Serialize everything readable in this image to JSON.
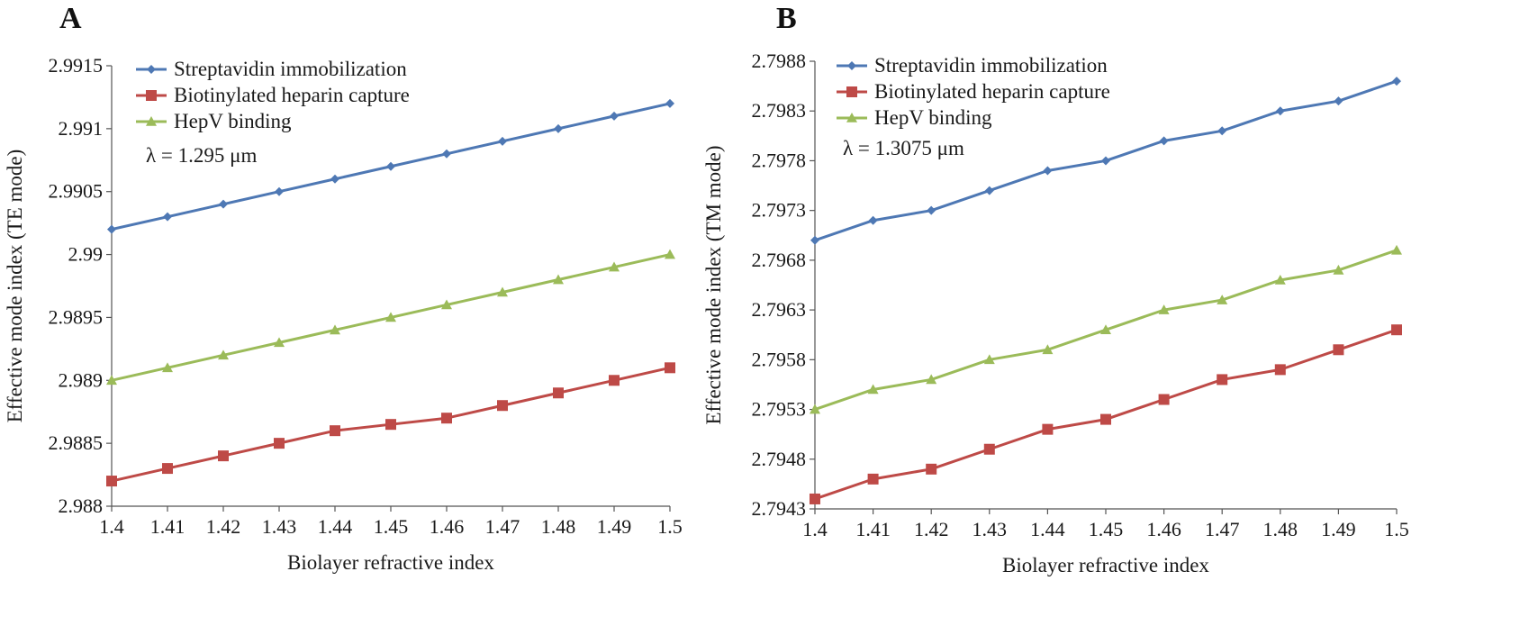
{
  "panels": {
    "a": {
      "label": "A"
    },
    "b": {
      "label": "B"
    }
  },
  "chart_data": [
    {
      "type": "line",
      "panel": "A",
      "title": "",
      "xlabel": "Biolayer refractive index",
      "ylabel": "Effective mode index (TE mode)",
      "annotation": "λ = 1.295 μm",
      "x": [
        1.4,
        1.41,
        1.42,
        1.43,
        1.44,
        1.45,
        1.46,
        1.47,
        1.48,
        1.49,
        1.5
      ],
      "xticks": [
        "1.4",
        "1.41",
        "1.42",
        "1.43",
        "1.44",
        "1.45",
        "1.46",
        "1.47",
        "1.48",
        "1.49",
        "1.5"
      ],
      "xlim": [
        1.4,
        1.5
      ],
      "ylim": [
        2.988,
        2.9915
      ],
      "yticks": [
        "2.988",
        "2.9885",
        "2.989",
        "2.9895",
        "2.99",
        "2.9905",
        "2.991",
        "2.9915"
      ],
      "legend_position": "top-left",
      "grid": false,
      "series": [
        {
          "name": "Streptavidin immobilization",
          "color": "#4e78b4",
          "marker": "diamond",
          "values": [
            2.9902,
            2.9903,
            2.9904,
            2.9905,
            2.9906,
            2.9907,
            2.9908,
            2.9909,
            2.991,
            2.9911,
            2.9912
          ]
        },
        {
          "name": "Biotinylated heparin capture",
          "color": "#be4a47",
          "marker": "square",
          "values": [
            2.9882,
            2.9883,
            2.9884,
            2.9885,
            2.9886,
            2.98865,
            2.9887,
            2.9888,
            2.9889,
            2.989,
            2.9891
          ]
        },
        {
          "name": "HepV binding",
          "color": "#9bbb59",
          "marker": "triangle",
          "values": [
            2.989,
            2.9891,
            2.9892,
            2.9893,
            2.9894,
            2.9895,
            2.9896,
            2.9897,
            2.9898,
            2.9899,
            2.99
          ]
        }
      ]
    },
    {
      "type": "line",
      "panel": "B",
      "title": "",
      "xlabel": "Biolayer refractive index",
      "ylabel": "Effective mode index (TM mode)",
      "annotation": "λ = 1.3075 μm",
      "x": [
        1.4,
        1.41,
        1.42,
        1.43,
        1.44,
        1.45,
        1.46,
        1.47,
        1.48,
        1.49,
        1.5
      ],
      "xticks": [
        "1.4",
        "1.41",
        "1.42",
        "1.43",
        "1.44",
        "1.45",
        "1.46",
        "1.47",
        "1.48",
        "1.49",
        "1.5"
      ],
      "xlim": [
        1.4,
        1.5
      ],
      "ylim": [
        2.7943,
        2.7988
      ],
      "yticks": [
        "2.7943",
        "2.7948",
        "2.7953",
        "2.7958",
        "2.7963",
        "2.7968",
        "2.7973",
        "2.7978",
        "2.7983",
        "2.7988"
      ],
      "legend_position": "top-left",
      "grid": false,
      "series": [
        {
          "name": "Streptavidin immobilization",
          "color": "#4e78b4",
          "marker": "diamond",
          "values": [
            2.797,
            2.7972,
            2.7973,
            2.7975,
            2.7977,
            2.7978,
            2.798,
            2.7981,
            2.7983,
            2.7984,
            2.7986
          ]
        },
        {
          "name": "Biotinylated heparin capture",
          "color": "#be4a47",
          "marker": "square",
          "values": [
            2.7944,
            2.7946,
            2.7947,
            2.7949,
            2.7951,
            2.7952,
            2.7954,
            2.7956,
            2.7957,
            2.7959,
            2.7961
          ]
        },
        {
          "name": "HepV binding",
          "color": "#9bbb59",
          "marker": "triangle",
          "values": [
            2.7953,
            2.7955,
            2.7956,
            2.7958,
            2.7959,
            2.7961,
            2.7963,
            2.7964,
            2.7966,
            2.7967,
            2.7969
          ]
        }
      ]
    }
  ]
}
